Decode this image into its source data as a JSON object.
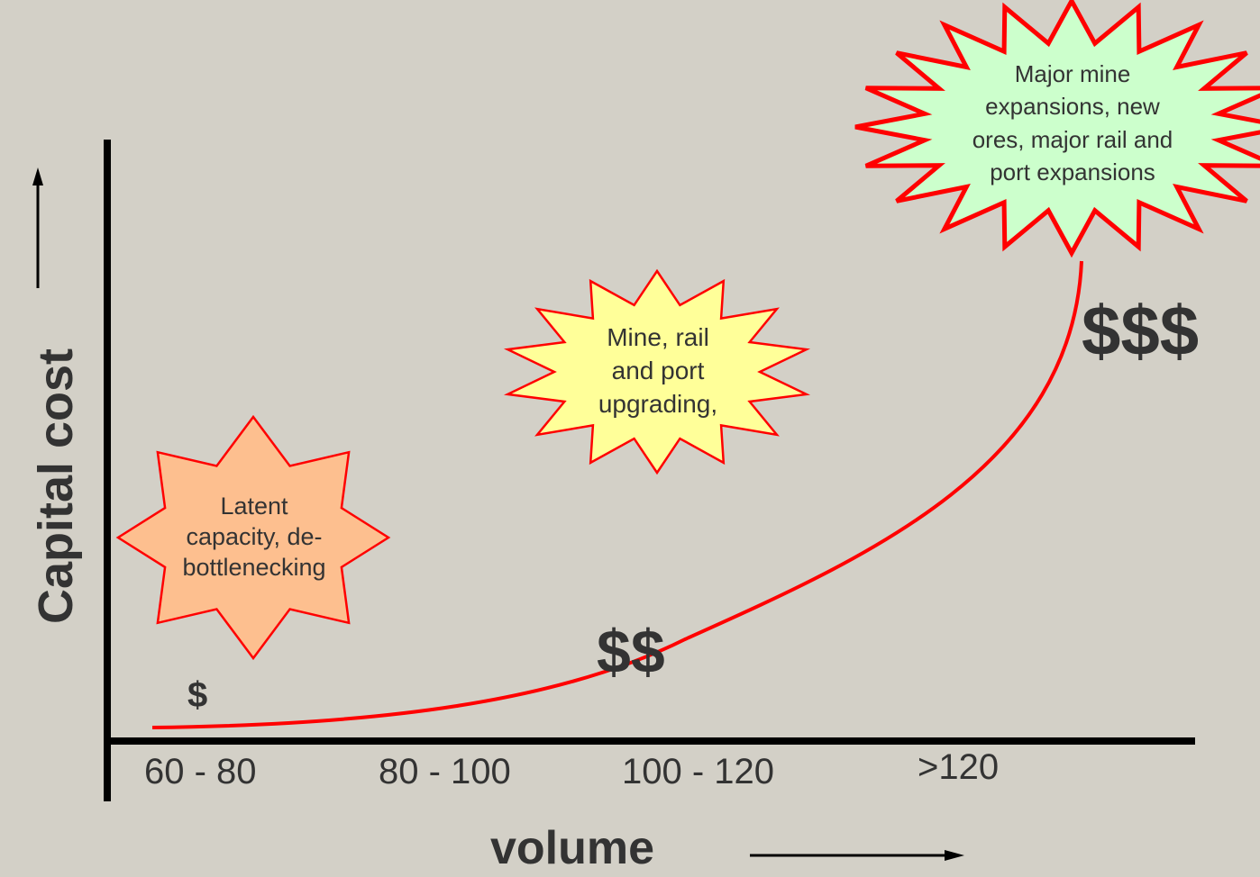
{
  "header": {
    "caption": ""
  },
  "axes": {
    "y_label": "Capital cost",
    "x_label": "volume",
    "ticks": [
      "60 - 80",
      "80 - 100",
      "100 - 120",
      ">120"
    ]
  },
  "cost_symbols": {
    "low": "$",
    "mid": "$$",
    "high": "$$$"
  },
  "callouts": {
    "latent": {
      "lines": [
        "Latent",
        "capacity, de-",
        "bottlenecking"
      ],
      "fill": "#fdbf8f",
      "stroke": "#ff0000"
    },
    "upgrade": {
      "lines": [
        "Mine, rail",
        "and port",
        "upgrading,"
      ],
      "fill": "#ffff99",
      "stroke": "#ff0000"
    },
    "major": {
      "lines": [
        "Major mine",
        "expansions, new",
        "ores, major rail and",
        "port expansions"
      ],
      "fill": "#ccffcc",
      "stroke": "#ff0000"
    }
  },
  "colors": {
    "curve": "#ff0000",
    "axis": "#000000",
    "text": "#333333",
    "background": "#d3d0c7"
  }
}
